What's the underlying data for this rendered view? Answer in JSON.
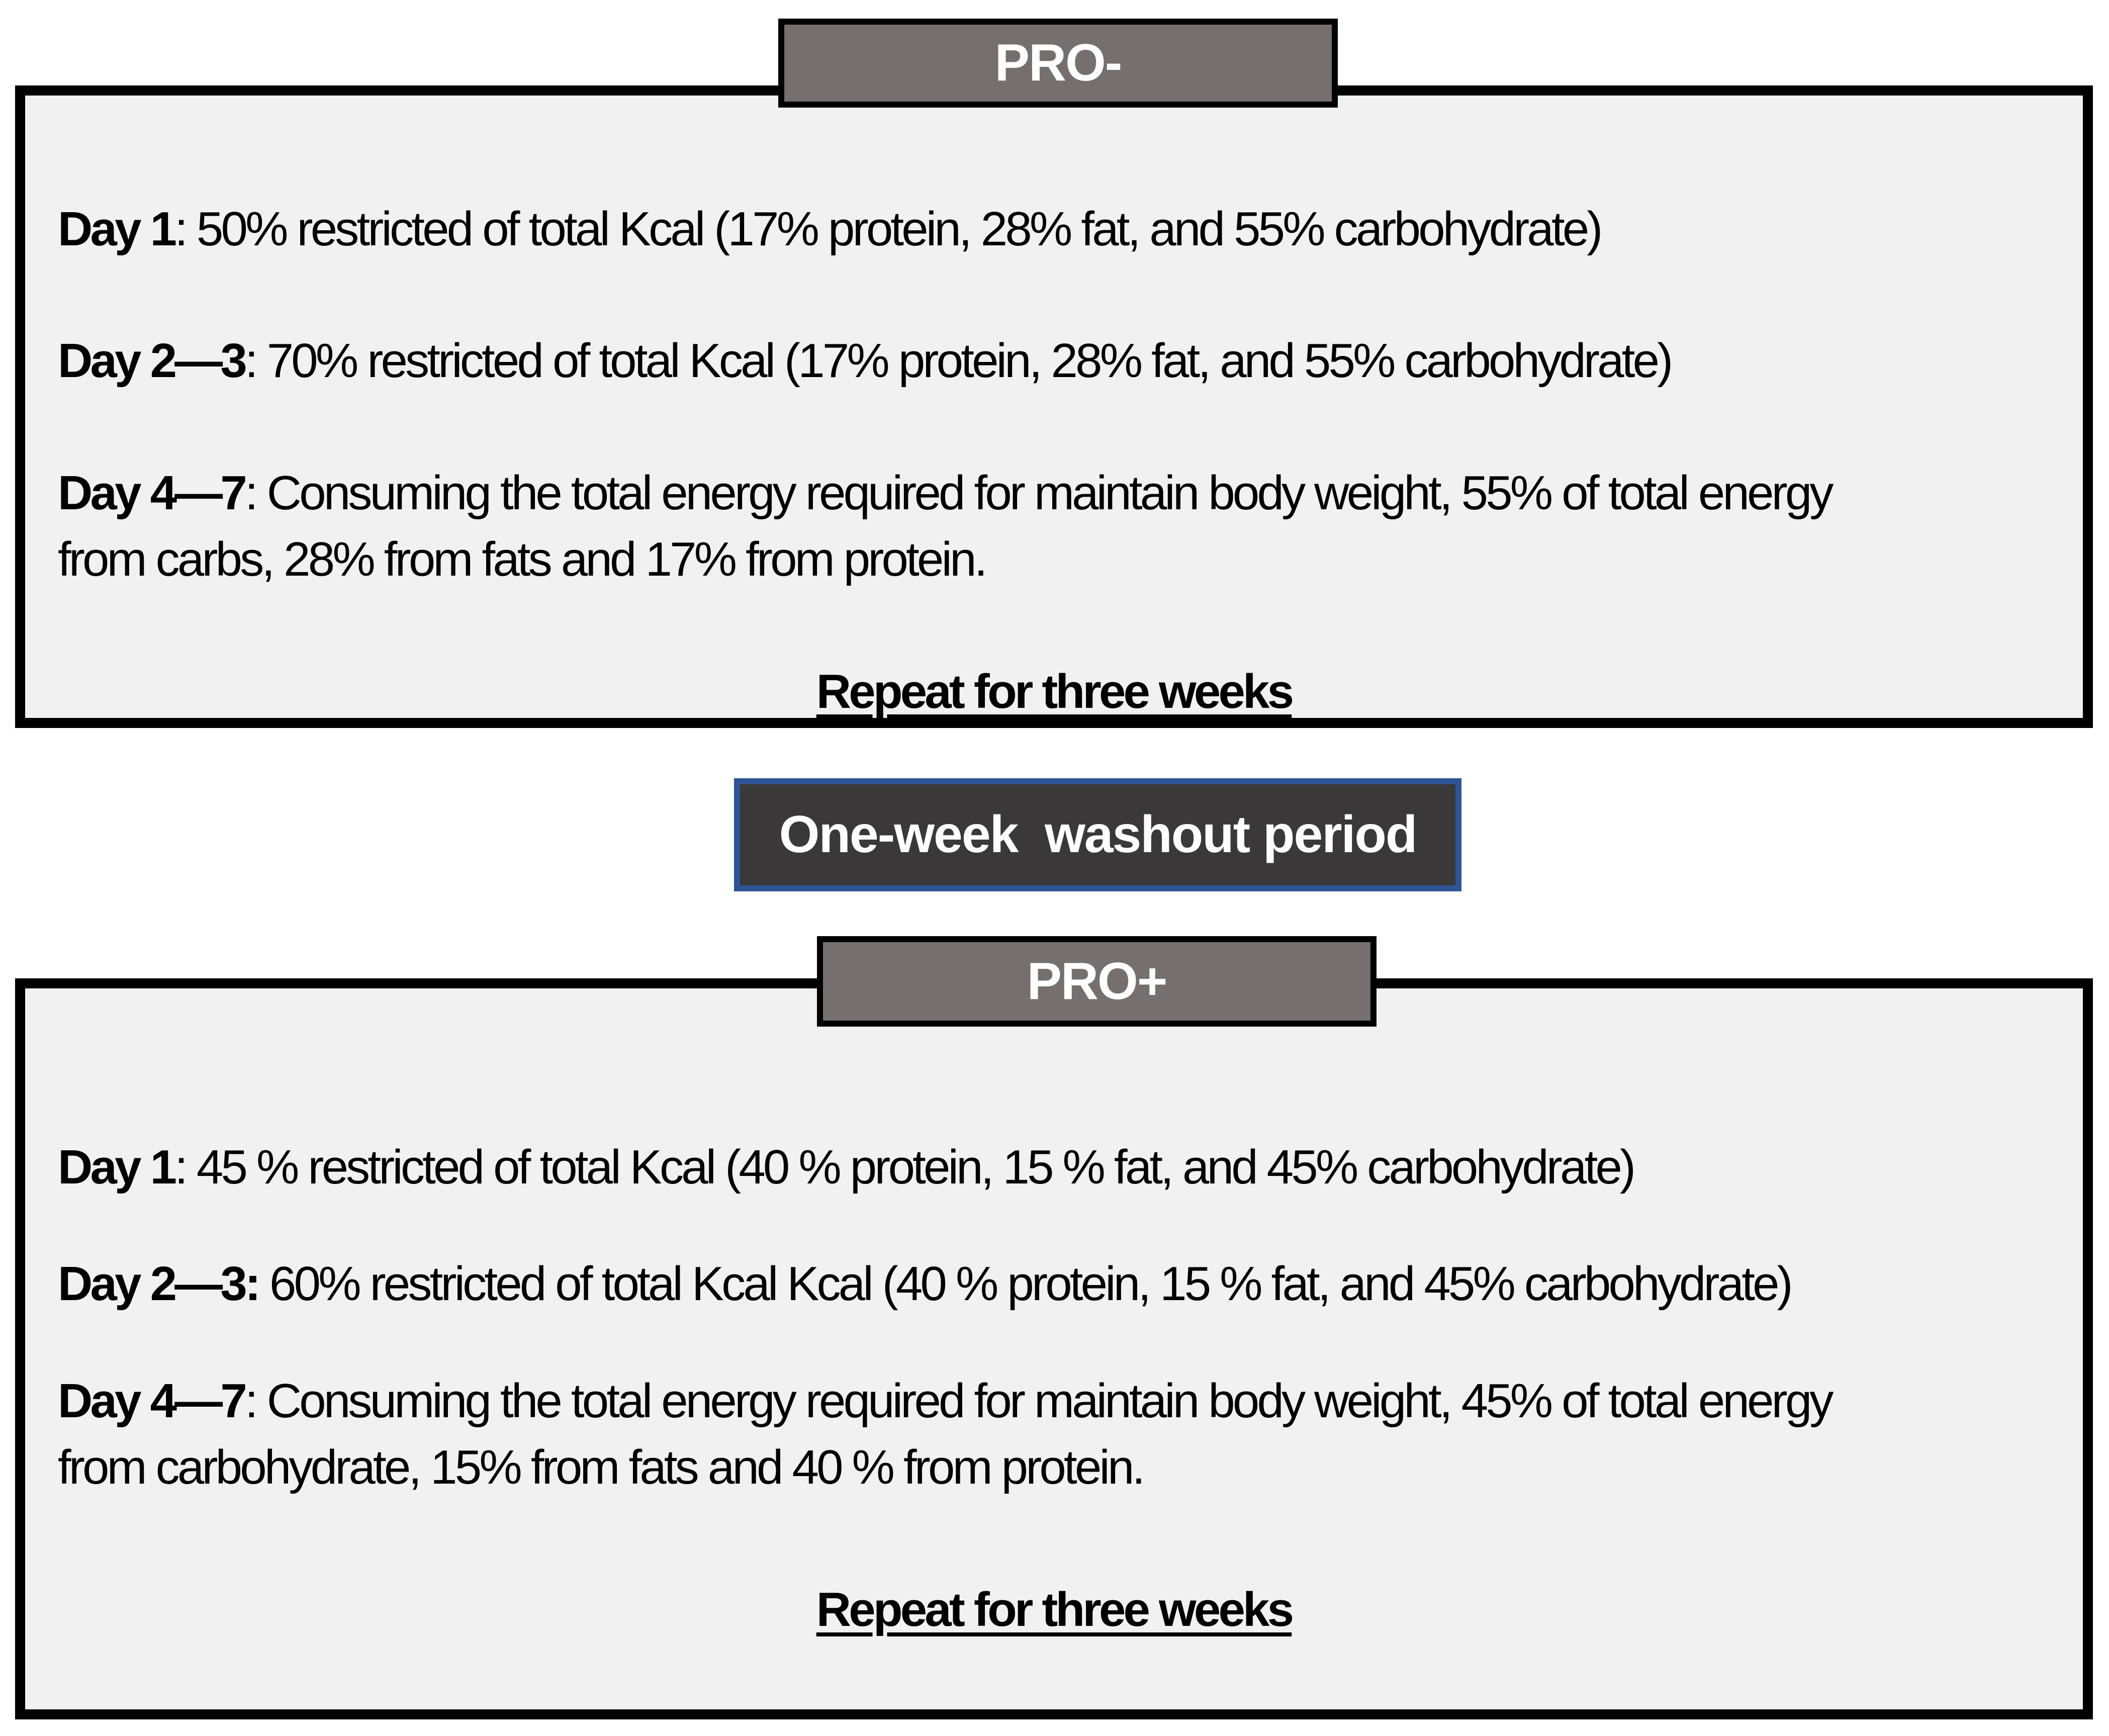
{
  "colors": {
    "box_fill": "#f1f1f1",
    "box_border": "#000000",
    "tab_fill": "#756f70",
    "tab_border": "#000000",
    "tab_text": "#ffffff",
    "washout_fill": "#3a3838",
    "washout_border": "#2f5496",
    "body_text": "#000000"
  },
  "pro_minus": {
    "tab_label": "PRO-",
    "items": [
      {
        "label": "Day 1",
        "text": ": 50% restricted of total Kcal (17% protein, 28% fat, and 55% carbohydrate)"
      },
      {
        "label": "Day 2—3",
        "text": ": 70% restricted of total Kcal (17% protein, 28% fat, and 55% carbohydrate)"
      },
      {
        "label": "Day 4—7",
        "text": ": Consuming the total energy required for maintain body weight, 55% of total energy from carbs, 28% from fats and 17% from protein."
      }
    ],
    "footer": "Repeat for three weeks"
  },
  "washout": {
    "label": "One-week  washout period"
  },
  "pro_plus": {
    "tab_label": "PRO+",
    "items": [
      {
        "label": "Day 1",
        "text": ": 45 % restricted of total Kcal (40 % protein, 15 % fat, and 45% carbohydrate)"
      },
      {
        "label": "Day 2—3:",
        "text": " 60% restricted of total Kcal Kcal (40 % protein, 15 % fat, and 45% carbohydrate)"
      },
      {
        "label": "Day 4—7",
        "text": ": Consuming the total energy required for maintain body weight, 45% of total energy from carbohydrate, 15% from fats and 40 % from protein."
      }
    ],
    "footer": "Repeat for three weeks"
  }
}
